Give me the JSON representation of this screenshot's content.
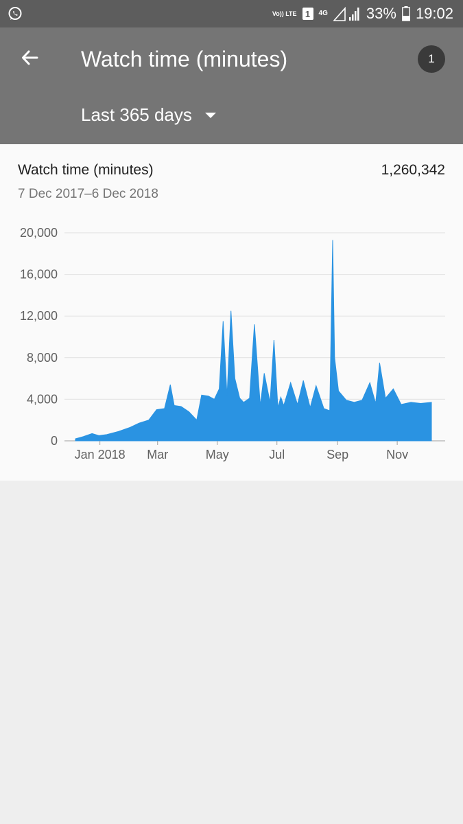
{
  "status_bar": {
    "network_volte": "Vo)) LTE",
    "sim": "1",
    "network_type": "4G",
    "battery": "33%",
    "time": "19:02"
  },
  "app_bar": {
    "title": "Watch time (minutes)",
    "badge": "1",
    "range_label": "Last 365 days"
  },
  "card": {
    "title": "Watch time (minutes)",
    "total": "1,260,342",
    "date_range": "7 Dec 2017–6 Dec 2018"
  },
  "colors": {
    "series": "#2a93e2",
    "app_bar": "#757575",
    "status_bar": "#5d5d5d"
  },
  "chart_data": {
    "type": "area",
    "title": "",
    "xlabel": "",
    "ylabel": "",
    "ylim": [
      0,
      20000
    ],
    "y_ticks": [
      "20,000",
      "16,000",
      "12,000",
      "8,000",
      "4,000",
      "0"
    ],
    "y_tick_values": [
      20000,
      16000,
      12000,
      8000,
      4000,
      0
    ],
    "x_ticks": [
      "Jan 2018",
      "Mar",
      "May",
      "Jul",
      "Sep",
      "Nov"
    ],
    "x_tick_dates": [
      "2018-01-01",
      "2018-03-01",
      "2018-05-01",
      "2018-07-01",
      "2018-09-01",
      "2018-11-01"
    ],
    "x_range": [
      "2017-12-07",
      "2018-12-06"
    ],
    "grid": true,
    "series": [
      {
        "x": [
          "2017-12-07",
          "2017-12-15",
          "2017-12-24",
          "2017-12-31",
          "2018-01-08",
          "2018-01-20",
          "2018-02-01",
          "2018-02-10",
          "2018-02-20",
          "2018-02-28",
          "2018-03-08",
          "2018-03-14",
          "2018-03-18",
          "2018-03-25",
          "2018-04-02",
          "2018-04-10",
          "2018-04-15",
          "2018-04-22",
          "2018-04-28",
          "2018-05-03",
          "2018-05-07",
          "2018-05-11",
          "2018-05-15",
          "2018-05-19",
          "2018-05-24",
          "2018-05-28",
          "2018-06-03",
          "2018-06-08",
          "2018-06-14",
          "2018-06-18",
          "2018-06-24",
          "2018-06-28",
          "2018-07-02",
          "2018-07-05",
          "2018-07-08",
          "2018-07-15",
          "2018-07-22",
          "2018-07-28",
          "2018-08-04",
          "2018-08-10",
          "2018-08-18",
          "2018-08-24",
          "2018-08-27",
          "2018-08-29",
          "2018-09-02",
          "2018-09-10",
          "2018-09-18",
          "2018-09-26",
          "2018-10-04",
          "2018-10-10",
          "2018-10-14",
          "2018-10-20",
          "2018-10-28",
          "2018-11-05",
          "2018-11-15",
          "2018-11-25",
          "2018-12-06"
        ],
        "y": [
          200,
          400,
          700,
          500,
          600,
          900,
          1300,
          1700,
          2000,
          3000,
          3100,
          5400,
          3400,
          3300,
          2800,
          2000,
          4400,
          4300,
          4000,
          5000,
          11500,
          4300,
          12500,
          6000,
          4100,
          3700,
          4100,
          11200,
          3400,
          6500,
          3700,
          9700,
          3200,
          4200,
          3400,
          5600,
          3500,
          5800,
          3200,
          5300,
          3100,
          2900,
          19300,
          8000,
          4800,
          3900,
          3700,
          3900,
          5600,
          3600,
          7500,
          4100,
          5000,
          3500,
          3700,
          3600,
          3700
        ]
      }
    ]
  }
}
